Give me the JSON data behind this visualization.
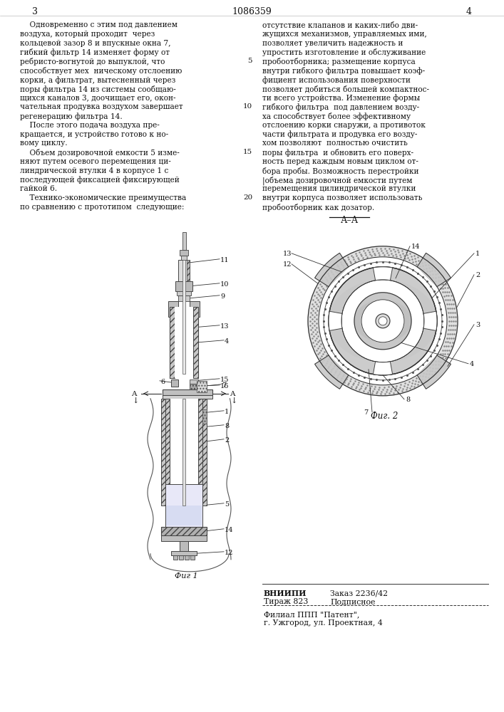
{
  "page_number_left": "3",
  "page_number_center": "1086359",
  "page_number_right": "4",
  "left_column_text": [
    "    Одновременно с этим под давлением",
    "воздуха, который проходит  через",
    "кольцевой зазор 8 и впускные окна 7,",
    "гибкий фильтр 14 изменяет форму от",
    "ребристо-вогнутой до выпуклой, что",
    "способствует мех  ническому отслоению",
    "корки, а фильтрат, вытесненный через",
    "поры фильтра 14 из системы сообщаю-",
    "щихся каналов 3, доочищает его, окон-",
    "чательная продувка воздухом завершает10",
    "регенерацию фильтра 14.",
    "    После этого подача воздуха пре-",
    "кращается, и устройство готово к но-",
    "вому циклу.",
    "    Объем дозировочной емкости 5 изме-15",
    "няют путем осевого перемещения ци-",
    "линдрической втулки 4 в корпусе 1 с",
    "последующей фиксацией фиксирующей",
    "гайкой 6.",
    "    Технико-экономические преимущества20",
    "по сравнению с прототипом  следующие:"
  ],
  "right_column_text": [
    "отсутствие клапанов и каких-либо дви-",
    "жущихся механизмов, управляемых ими,",
    "позволяет увеличить надежность и",
    "упростить изготовление и обслуживание",
    "пробоотборника; размещение корпуса",
    "внутри гибкого фильтра повышает коэф-",
    "фициент использования поверхности",
    "позволяет добиться большей компактнос-",
    "ти всего устройства. Изменение формы",
    "гибкого фильтра  под давлением возду-",
    "ха способствует более эффективному",
    "отслоению корки снаружи, а противоток",
    "части фильтрата и продувка его возду-",
    "хом позволяют  полностью очистить",
    "поры фильтра  и обновить его поверх-",
    "ность перед каждым новым циклом от-",
    "бора пробы. Возможность перестройки",
    "|объема дозировочной емкости путем",
    "перемещения цилиндрической втулки",
    "внутри корпуса позволяет использовать",
    "пробоотборник как дозатор."
  ],
  "section_label": "А–А",
  "fig1_label": "Фиг 1",
  "fig2_label": "Фиг. 2",
  "vnipi_line1_left": "ВНИИПИ",
  "vnipi_line1_right": "Заказ 2236/42",
  "vnipi_line2_left": "Тираж 823",
  "vnipi_line2_right": "Подписное",
  "filial_line1": "Филиал ППП \"Патент\",",
  "filial_line2": "г. Ужгород, ул. Проектная, 4",
  "bg_color": "#ffffff",
  "text_color": "#1a1a1a"
}
